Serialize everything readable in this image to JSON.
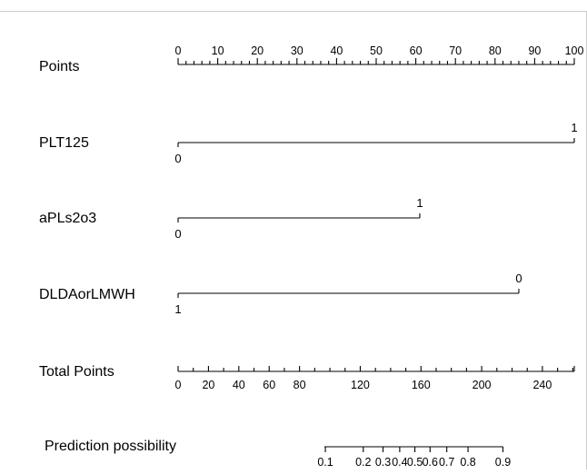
{
  "chart_data": {
    "type": "nomogram",
    "rows": [
      {
        "id": "points",
        "label": "Points",
        "kind": "axis",
        "range": [
          0,
          100
        ],
        "major_ticks": [
          0,
          10,
          20,
          30,
          40,
          50,
          60,
          70,
          80,
          90,
          100
        ],
        "minor_step": 2
      },
      {
        "id": "plt125",
        "label": "PLT125",
        "kind": "variable",
        "levels": [
          {
            "label": "0",
            "points": 0
          },
          {
            "label": "1",
            "points": 100
          }
        ]
      },
      {
        "id": "apls2o3",
        "label": "aPLs2o3",
        "kind": "variable",
        "levels": [
          {
            "label": "0",
            "points": 0
          },
          {
            "label": "1",
            "points": 61
          }
        ]
      },
      {
        "id": "dldaorlmwh",
        "label": "DLDAorLMWH",
        "kind": "variable",
        "levels": [
          {
            "label": "1",
            "points": 0
          },
          {
            "label": "0",
            "points": 86
          }
        ]
      },
      {
        "id": "total-points",
        "label": "Total Points",
        "kind": "axis",
        "range": [
          0,
          261
        ],
        "labeled_ticks": [
          0,
          20,
          40,
          60,
          80,
          120,
          160,
          200,
          240
        ],
        "tick_step": 10
      },
      {
        "id": "prediction",
        "label": "Prediction possibility",
        "kind": "probability",
        "ticks": [
          {
            "label": "0.1",
            "total_points": 97
          },
          {
            "label": "0.2",
            "total_points": 122
          },
          {
            "label": "0.3",
            "total_points": 135
          },
          {
            "label": "0.4",
            "total_points": 146
          },
          {
            "label": "0.5",
            "total_points": 156
          },
          {
            "label": "0.6",
            "total_points": 166
          },
          {
            "label": "0.7",
            "total_points": 177
          },
          {
            "label": "0.8",
            "total_points": 191
          },
          {
            "label": "0.9",
            "total_points": 214
          }
        ]
      }
    ]
  }
}
